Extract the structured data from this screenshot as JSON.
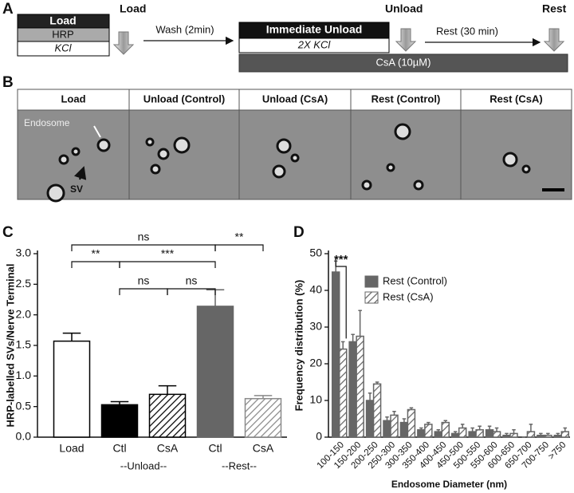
{
  "panel_a": {
    "letter": "A",
    "load_title": "Load",
    "load_box": [
      "Load",
      "HRP",
      "KCl"
    ],
    "wash": "Wash (2min)",
    "unload_box": [
      "Immediate Unload",
      "2X KCl"
    ],
    "drug": "CsA (10µM)",
    "unload_title": "Unload",
    "rest_step": "Rest (30 min)",
    "rest_title": "Rest"
  },
  "panel_b": {
    "letter": "B",
    "columns": [
      "Load",
      "Unload (Control)",
      "Unload (CsA)",
      "Rest (Control)",
      "Rest (CsA)"
    ],
    "labels": [
      "Endosome",
      "SV"
    ]
  },
  "chart_data": [
    {
      "type": "bar",
      "letter": "C",
      "ylabel": "HRP-labelled SVs/Nerve Terminal",
      "categories": [
        "Load",
        "Ctl",
        "CsA",
        "Ctl",
        "CsA"
      ],
      "groups": [
        "--Unload--",
        "--Rest--"
      ],
      "values": [
        1.57,
        0.53,
        0.7,
        2.14,
        0.63
      ],
      "errors": [
        0.13,
        0.05,
        0.14,
        0.27,
        0.05
      ],
      "colors": [
        "#000000",
        "#000000",
        "#000000",
        "#666666",
        "#8a8a8a"
      ],
      "fills": [
        "#ffffff",
        "#000000",
        "hatch",
        "#666666",
        "hatch"
      ],
      "ylim": [
        0,
        3.0
      ],
      "yticks": [
        {
          "value": 0,
          "label": "0.0"
        },
        0.5,
        {
          "value": 1,
          "label": "1.0"
        },
        1.5,
        {
          "value": 2,
          "label": "2.0"
        },
        2.5,
        {
          "value": 3,
          "label": "3.0"
        }
      ],
      "annotations": [
        "ns",
        "**",
        "***",
        "**",
        "ns",
        "ns"
      ]
    },
    {
      "type": "bar",
      "letter": "D",
      "ylabel": "Frequency distribution (%)",
      "xlabel": "Endosome Diameter (nm)",
      "categories": [
        "100-150",
        "150-200",
        "200-250",
        "250-300",
        "300-350",
        "350-400",
        "400-450",
        "450-500",
        "500-550",
        "550-600",
        "600-650",
        "650-700",
        "700-750",
        ">750"
      ],
      "series": [
        {
          "name": "Rest (Control)",
          "color": "#666666",
          "hatch": false,
          "values": [
            45,
            26,
            10,
            4.5,
            4,
            2,
            1.5,
            1,
            1.5,
            2,
            0.5,
            0,
            0.5,
            0.5
          ],
          "errors": [
            3,
            2,
            2,
            1,
            1,
            0.5,
            0.5,
            0.5,
            1,
            1,
            0.5,
            0,
            0.5,
            0.5
          ]
        },
        {
          "name": "Rest (CsA)",
          "color": "#666666",
          "hatch": true,
          "values": [
            24,
            27.5,
            14.5,
            6,
            7.5,
            3.5,
            4,
            2.5,
            2,
            1.5,
            1,
            1.5,
            0.5,
            1.5
          ],
          "errors": [
            2,
            7,
            0.5,
            1,
            0.5,
            0.5,
            0.5,
            1,
            1,
            1,
            1,
            2,
            0.5,
            1
          ]
        }
      ],
      "ylim": [
        0,
        50
      ],
      "yticks": [
        0,
        10,
        20,
        30,
        40,
        50
      ],
      "annotations": [
        "***"
      ],
      "legend": "right"
    }
  ]
}
